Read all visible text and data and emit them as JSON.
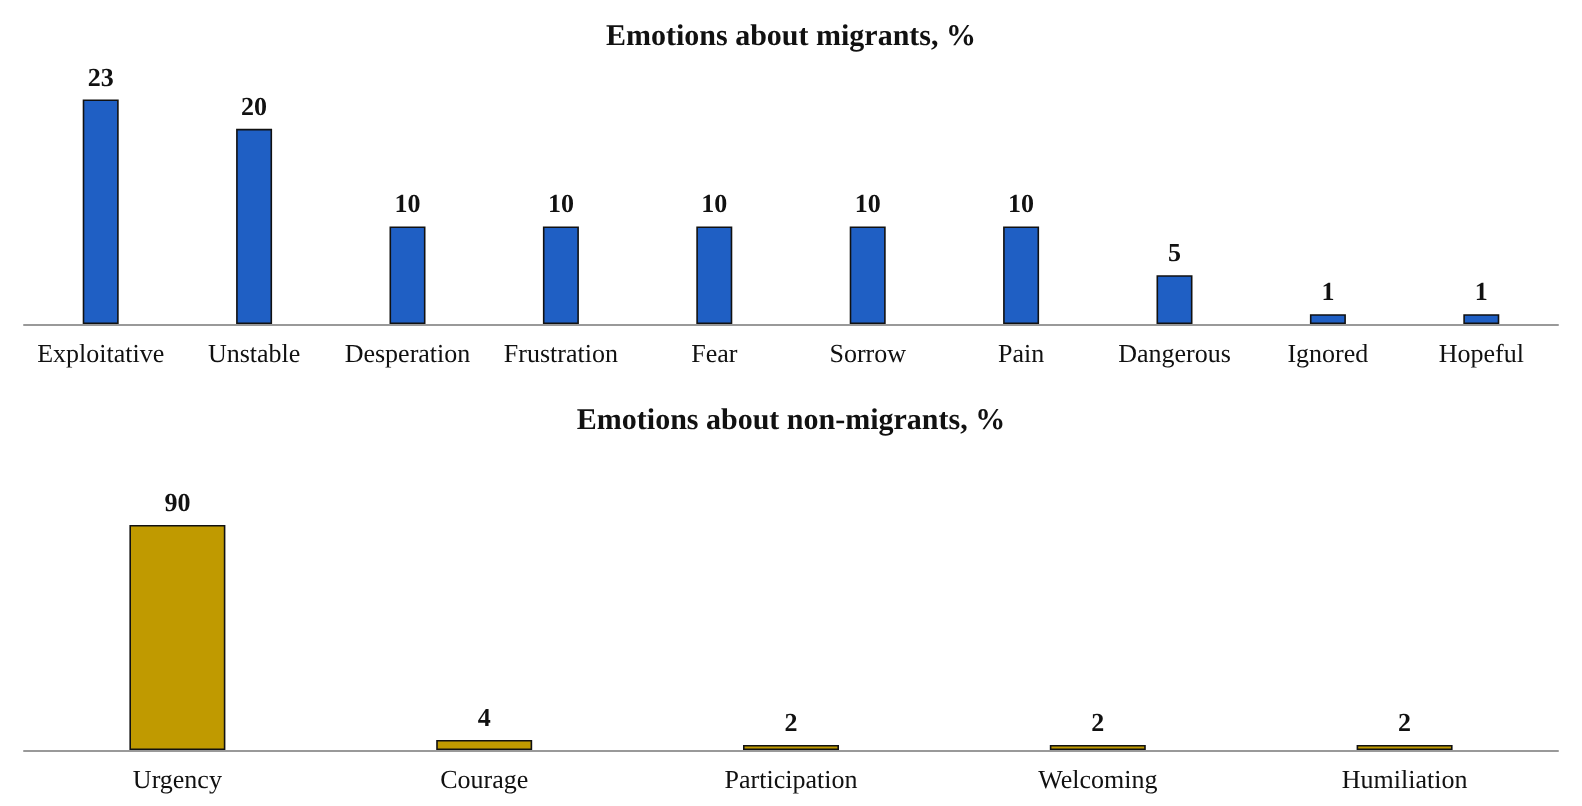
{
  "chart_data": [
    {
      "type": "bar",
      "title": "Emotions about migrants, %",
      "categories": [
        "Exploitative",
        "Unstable",
        "Desperation",
        "Frustration",
        "Fear",
        "Sorrow",
        "Pain",
        "Dangerous",
        "Ignored",
        "Hopeful"
      ],
      "values": [
        23,
        20,
        10,
        10,
        10,
        10,
        10,
        5,
        1,
        1
      ],
      "color": "#1f5fc4",
      "data_labels": true
    },
    {
      "type": "bar",
      "title": "Emotions about non-migrants, %",
      "categories": [
        "Urgency",
        "Courage",
        "Participation",
        "Welcoming",
        "Humiliation"
      ],
      "values": [
        90,
        4,
        2,
        2,
        2
      ],
      "color": "#c09a00",
      "data_labels": true
    }
  ]
}
